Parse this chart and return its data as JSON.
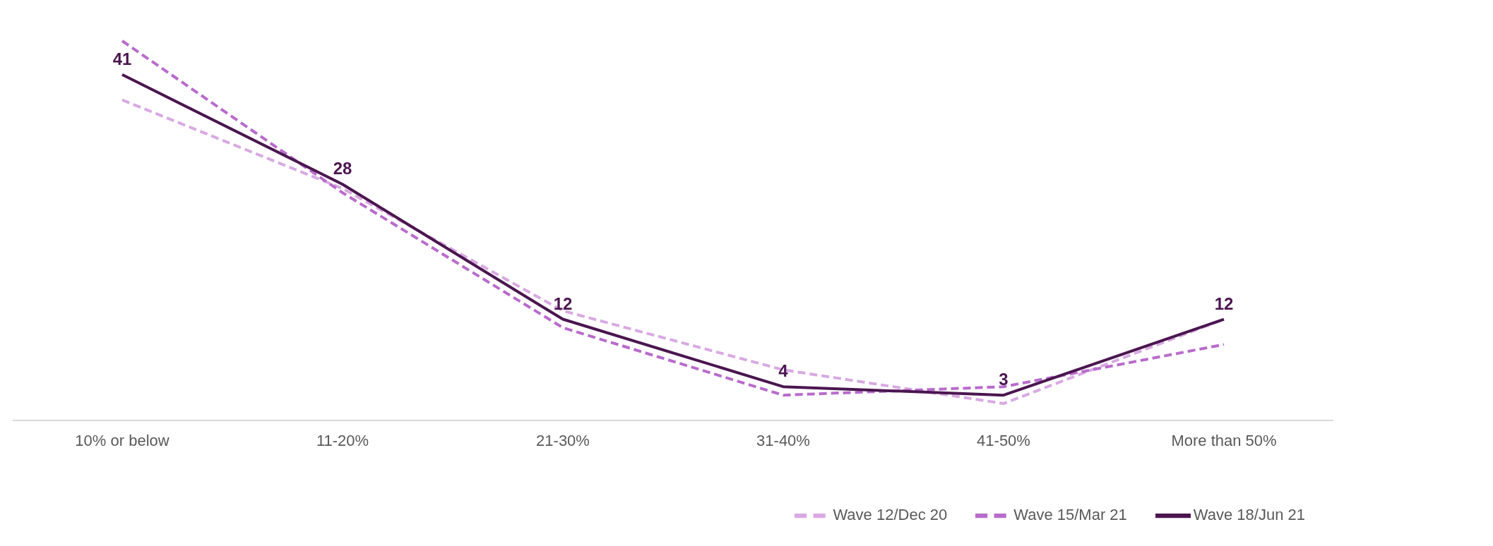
{
  "chart_data": {
    "type": "line",
    "categories": [
      "10% or below",
      "11-20%",
      "21-30%",
      "31-40%",
      "41-50%",
      "More than 50%"
    ],
    "series": [
      {
        "name": "Wave 12/Dec 20",
        "color": "#d9a9e3",
        "line_style": "dashed",
        "values": [
          38,
          27.5,
          13,
          6,
          2,
          12
        ]
      },
      {
        "name": "Wave 15/Mar 21",
        "color": "#b96bcc",
        "line_style": "dashed",
        "values": [
          45,
          27,
          11,
          3,
          4,
          9
        ]
      },
      {
        "name": "Wave 18/Jun 21",
        "color": "#4b1650",
        "line_style": "solid",
        "values": [
          41,
          28,
          12,
          4,
          3,
          12
        ],
        "value_labels": [
          "41",
          "28",
          "12",
          "4",
          "3",
          "12"
        ]
      }
    ],
    "legend": "bottom right",
    "marker": "none"
  }
}
